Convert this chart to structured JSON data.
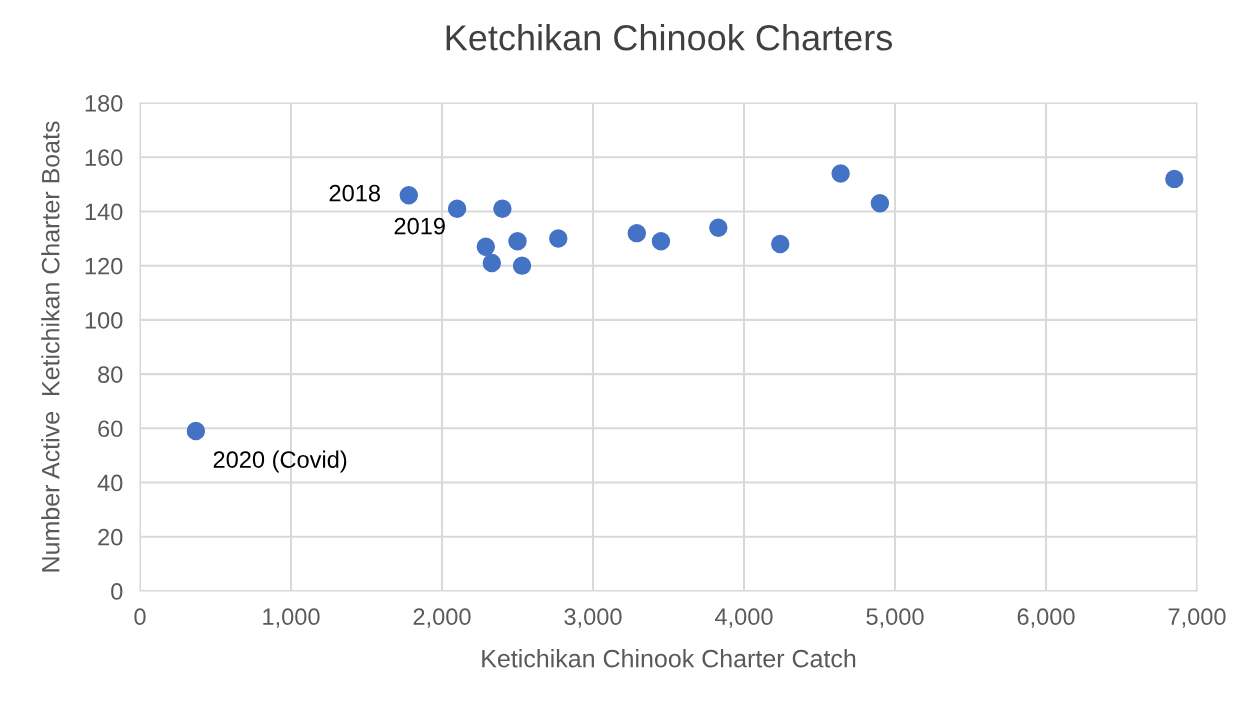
{
  "chart_data": {
    "type": "scatter",
    "title": "Ketchikan Chinook Charters",
    "xlabel": "Ketichikan Chinook Charter Catch",
    "ylabel": "Number Active  Ketichikan Charter Boats",
    "x": [
      370,
      1780,
      2100,
      2400,
      2290,
      2330,
      2500,
      2530,
      2770,
      3290,
      3450,
      3830,
      4240,
      4640,
      4900,
      6850
    ],
    "series": [
      {
        "color": "#4472c4",
        "values": [
          59,
          146,
          141,
          141,
          127,
          121,
          129,
          120,
          130,
          132,
          129,
          134,
          128,
          154,
          143,
          152
        ]
      }
    ],
    "xlim": [
      0,
      7000
    ],
    "xticks": [
      {
        "value": 0,
        "label": "0"
      },
      {
        "value": 1000,
        "label": "1,000"
      },
      {
        "value": 2000,
        "label": "2,000"
      },
      {
        "value": 3000,
        "label": "3,000"
      },
      {
        "value": 4000,
        "label": "4,000"
      },
      {
        "value": 5000,
        "label": "5,000"
      },
      {
        "value": 6000,
        "label": "6,000"
      },
      {
        "value": 7000,
        "label": "7,000"
      }
    ],
    "ylim": [
      0,
      180
    ],
    "yticks": [
      0,
      20,
      40,
      60,
      80,
      100,
      120,
      140,
      160,
      180
    ],
    "grid": true,
    "marker": "circle",
    "legend": false,
    "annotations": [
      {
        "text": "2018",
        "x": 1780,
        "y": 146
      },
      {
        "text": "2019",
        "x": 2100,
        "y": 141
      },
      {
        "text": "2020 (Covid)",
        "x": 370,
        "y": 59
      }
    ]
  }
}
